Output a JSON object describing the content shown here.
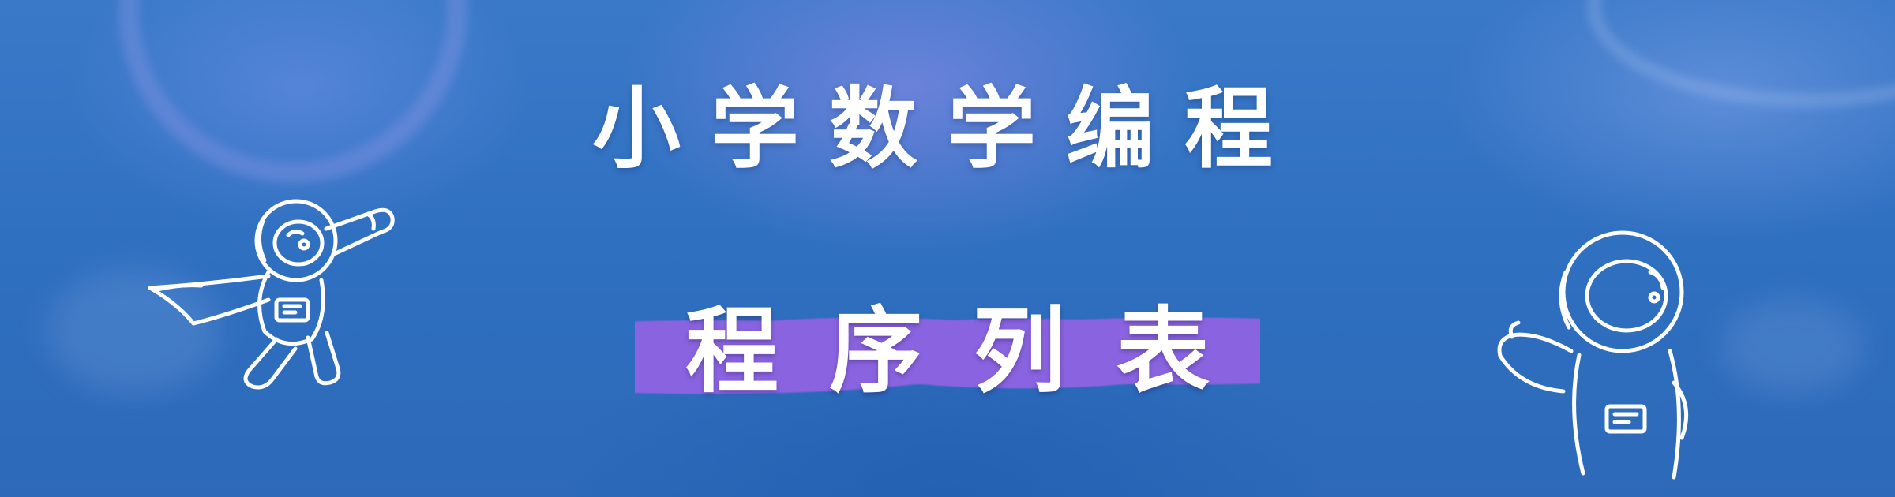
{
  "banner": {
    "title": "小学数学编程",
    "subtitle": "程序列表"
  },
  "colors": {
    "background": "#2f6fc0",
    "text": "#ffffff",
    "subtitle_highlight": "#8a64e0",
    "sketch_lines": "#ffffff"
  },
  "illustrations": {
    "left": "flying-astronaut-icon",
    "right": "waving-astronaut-icon"
  }
}
